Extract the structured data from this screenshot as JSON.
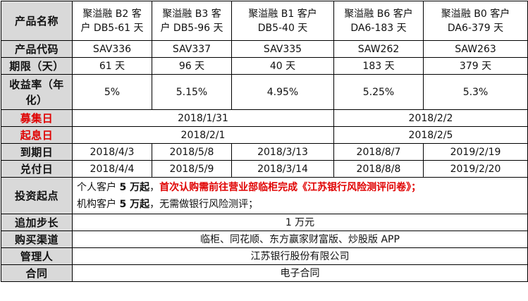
{
  "labels": {
    "product_name": "产品名称",
    "product_code": "产品代码",
    "term": "期限（天）",
    "yield_rate": "收益率（年化）",
    "raise_day": "募集日",
    "value_day": "起息日",
    "maturity_day": "到期日",
    "payment_day": "兑付日",
    "invest_start": "投资起点",
    "increment": "追加步长",
    "channel": "购买渠道",
    "manager": "管理人",
    "contract": "合同"
  },
  "products": [
    {
      "name_line1": "聚溢融 B2 客",
      "name_line2": "户 DB5-61 天",
      "code": "SAV336",
      "term": "61 天",
      "yield": "5%",
      "maturity": "2018/4/3",
      "payment": "2018/4/4"
    },
    {
      "name_line1": "聚溢融 B3 客",
      "name_line2": "户 DB5-96 天",
      "code": "SAV337",
      "term": "96 天",
      "yield": "5.15%",
      "maturity": "2018/5/8",
      "payment": "2018/5/9"
    },
    {
      "name_line1": "聚溢融 B1 客户",
      "name_line2": "DB5-40 天",
      "code": "SAV335",
      "term": "40 天",
      "yield": "4.95%",
      "maturity": "2018/3/13",
      "payment": "2018/3/14"
    },
    {
      "name_line1": "聚溢融 B6 客户",
      "name_line2": "DA6-183 天",
      "code": "SAW262",
      "term": "183 天",
      "yield": "5.25%",
      "maturity": "2018/8/7",
      "payment": "2018/8/8"
    },
    {
      "name_line1": "聚溢融 B0 客户",
      "name_line2": "DA6-379 天",
      "code": "SAW263",
      "term": "379 天",
      "yield": "5.3%",
      "maturity": "2019/2/19",
      "payment": "2019/2/20"
    }
  ],
  "raise_dates": {
    "group1": "2018/1/31",
    "group2": "2018/2/2"
  },
  "value_dates": {
    "group1": "2018/2/1",
    "group2": "2018/2/5"
  },
  "invest": {
    "line1_a": "个人客户 ",
    "line1_b": "5 万起",
    "line1_c": "，",
    "line1_d": "首次认购需前往营业部临柜完成《江苏银行风险测评问卷》；",
    "line2_a": "机构客户 ",
    "line2_b": "5 万起",
    "line2_c": "，无需做银行风险测评；"
  },
  "increment_value": "1 万元",
  "channel_value": "临柜、同花顺、东方赢家财富版、炒股版 APP",
  "manager_value": "江苏银行股份有限公司",
  "contract_value": "电子合同",
  "colors": {
    "header_bg": "#d9d9d9",
    "accent_red": "#e00000"
  }
}
